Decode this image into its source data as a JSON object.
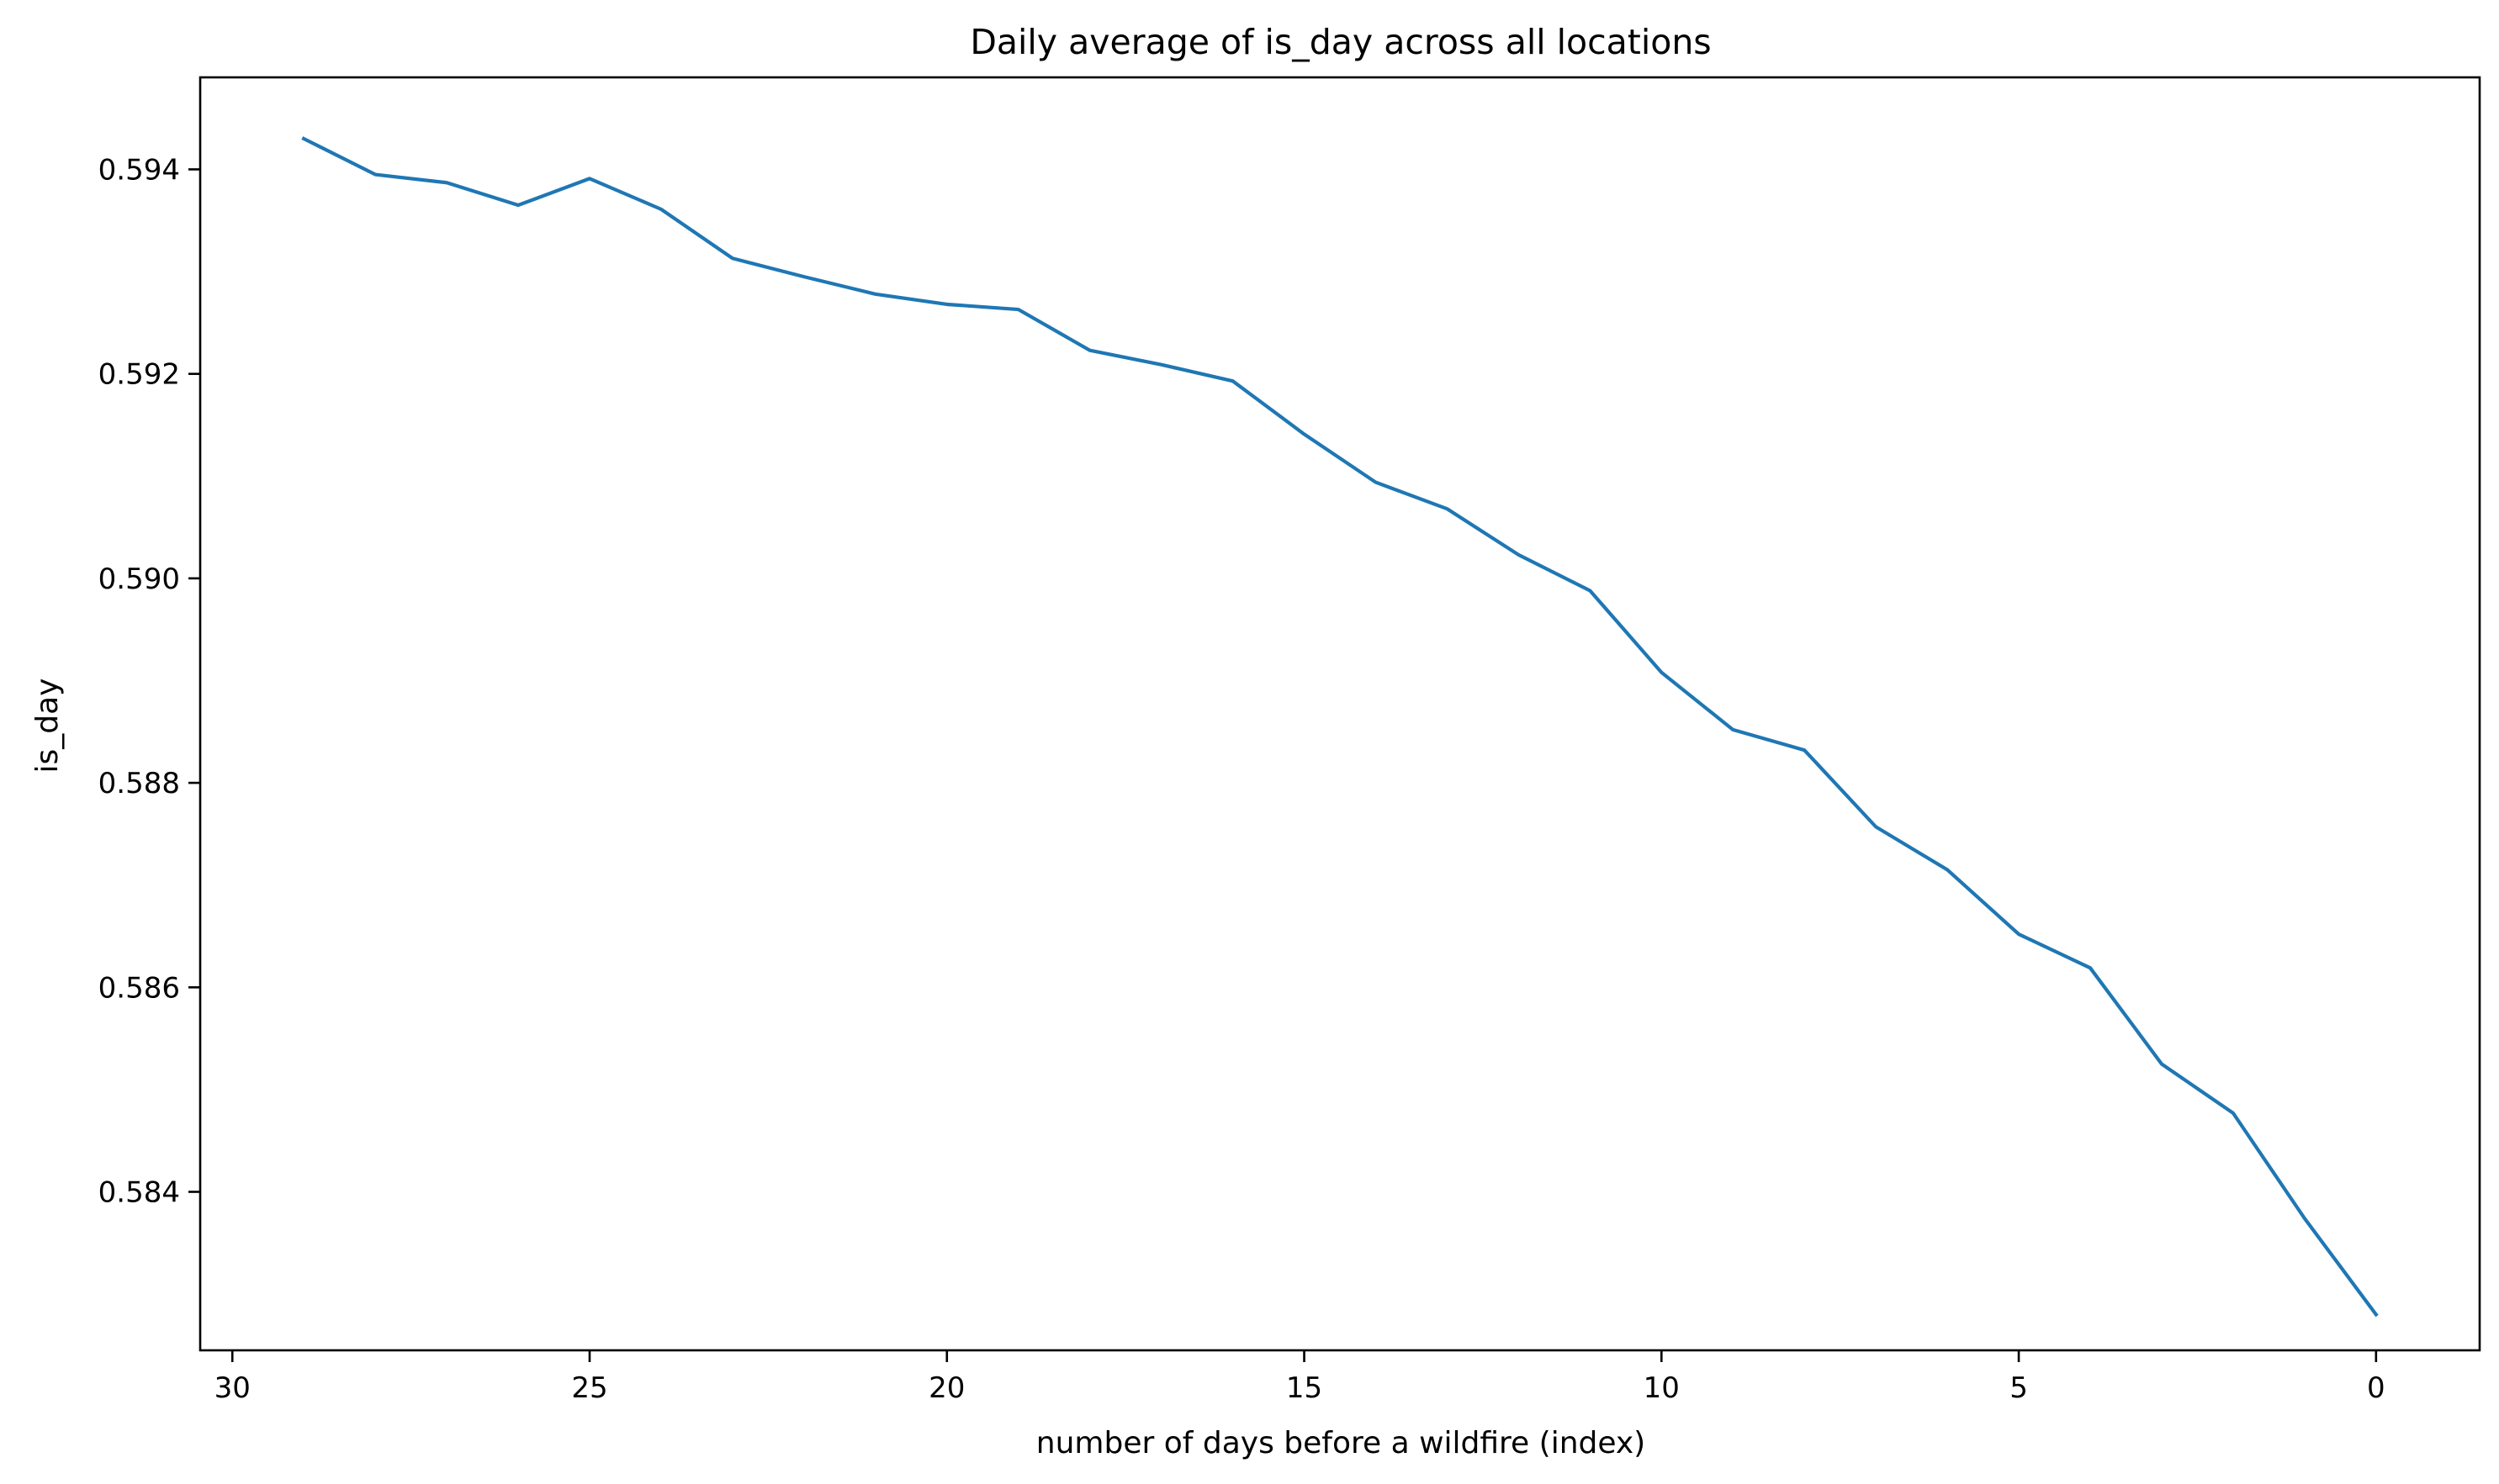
{
  "chart_data": {
    "type": "line",
    "title": "Daily average of is_day across all locations",
    "xlabel": "number of days before a wildfire (index)",
    "ylabel": "is_day",
    "x_inverted": true,
    "xlim": [
      30.45,
      -1.45
    ],
    "ylim": [
      0.58245,
      0.5949
    ],
    "xticks": [
      30,
      25,
      20,
      15,
      10,
      5,
      0
    ],
    "xtick_labels": [
      "30",
      "25",
      "20",
      "15",
      "10",
      "5",
      "0"
    ],
    "yticks": [
      0.584,
      0.586,
      0.588,
      0.59,
      0.592,
      0.594
    ],
    "ytick_labels": [
      "0.584",
      "0.586",
      "0.588",
      "0.590",
      "0.592",
      "0.594"
    ],
    "grid": false,
    "series": [
      {
        "color": "#1f77b4",
        "x": [
          29,
          28,
          27,
          26,
          25,
          24,
          23,
          22,
          21,
          20,
          19,
          18,
          17,
          16,
          15,
          14,
          13,
          12,
          11,
          10,
          9,
          8,
          7,
          6,
          5,
          4,
          3,
          2,
          1,
          0
        ],
        "y": [
          0.5943,
          0.59395,
          0.59387,
          0.59365,
          0.59391,
          0.59361,
          0.59313,
          0.59295,
          0.59278,
          0.59268,
          0.59263,
          0.59223,
          0.59209,
          0.59193,
          0.59141,
          0.59094,
          0.59068,
          0.59023,
          0.58988,
          0.58908,
          0.58852,
          0.58832,
          0.58757,
          0.58715,
          0.58652,
          0.58619,
          0.58525,
          0.58477,
          0.58374,
          0.5828
        ]
      }
    ]
  }
}
